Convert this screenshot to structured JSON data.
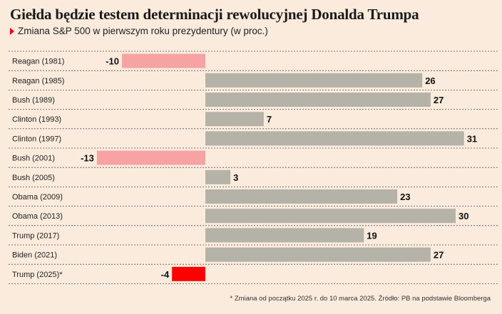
{
  "title": "Giełda będzie testem determinacji rewolucyjnej Donalda Trumpa",
  "subtitle": "Zmiana S&P 500 w pierwszym roku prezydentury (w proc.)",
  "footnote": "* Zmiana od początku 2025 r. do 10 marca 2025. Źródło: PB na podstawie Bloomberga",
  "colors": {
    "positive": "#b5b2a8",
    "negative": "#f8a3a3",
    "highlight": "#ff0000",
    "gridline": "#555555"
  },
  "chart_data": {
    "type": "bar",
    "orientation": "horizontal",
    "title": "Giełda będzie testem determinacji rewolucyjnej Donalda Trumpa",
    "subtitle": "Zmiana S&P 500 w pierwszym roku prezydentury (w proc.)",
    "xlim": [
      -16,
      33
    ],
    "grid": true,
    "categories": [
      "Reagan (1981)",
      "Reagan (1985)",
      "Bush (1989)",
      "Clinton (1993)",
      "Clinton (1997)",
      "Bush (2001)",
      "Bush (2005)",
      "Obama (2009)",
      "Obama (2013)",
      "Trump (2017)",
      "Biden (2021)",
      "Trump (2025)*"
    ],
    "values": [
      -10,
      26,
      27,
      7,
      31,
      -13,
      3,
      23,
      30,
      19,
      27,
      -4
    ],
    "labels": [
      "-10",
      "26",
      "27",
      "7",
      "31",
      "-13",
      "3",
      "23",
      "30",
      "19",
      "27",
      "-4"
    ],
    "highlight": "Trump (2025)*"
  }
}
